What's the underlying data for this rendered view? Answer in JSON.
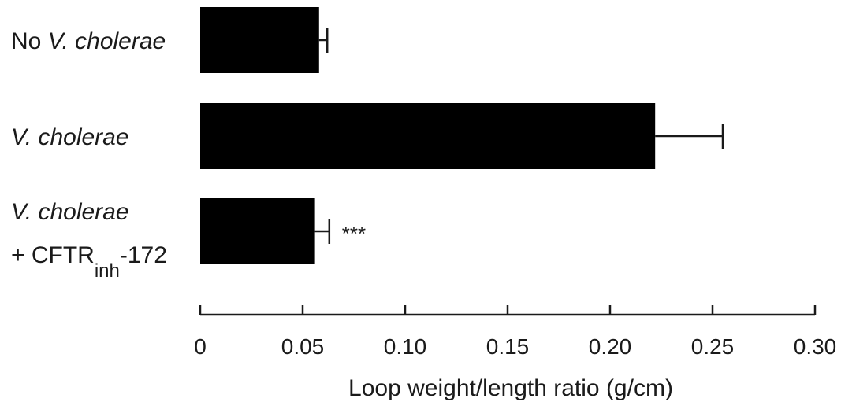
{
  "chart_data": {
    "type": "bar",
    "orientation": "horizontal",
    "categories": [
      {
        "parts": [
          {
            "text": "No ",
            "italic": false
          },
          {
            "text": "V. cholerae",
            "italic": true
          }
        ]
      },
      {
        "parts": [
          {
            "text": "V. cholerae",
            "italic": true
          }
        ]
      },
      {
        "parts": [
          {
            "text": "V. cholerae",
            "italic": true
          }
        ],
        "line2": {
          "prefix": "+ CFTR",
          "sub": "inh",
          "suffix": "-172"
        }
      }
    ],
    "values": [
      0.058,
      0.222,
      0.056
    ],
    "errors": [
      0.004,
      0.033,
      0.007
    ],
    "annotations": [
      "",
      "",
      "***"
    ],
    "xlabel": "Loop weight/length ratio (g/cm)",
    "xlim": [
      0,
      0.3
    ],
    "xticks": [
      0,
      0.05,
      0.1,
      0.15,
      0.2,
      0.25,
      0.3
    ],
    "xtick_labels": [
      "0",
      "0.05",
      "0.10",
      "0.15",
      "0.20",
      "0.25",
      "0.30"
    ],
    "bar_color": "#000000",
    "grid": false,
    "legend": "none"
  }
}
